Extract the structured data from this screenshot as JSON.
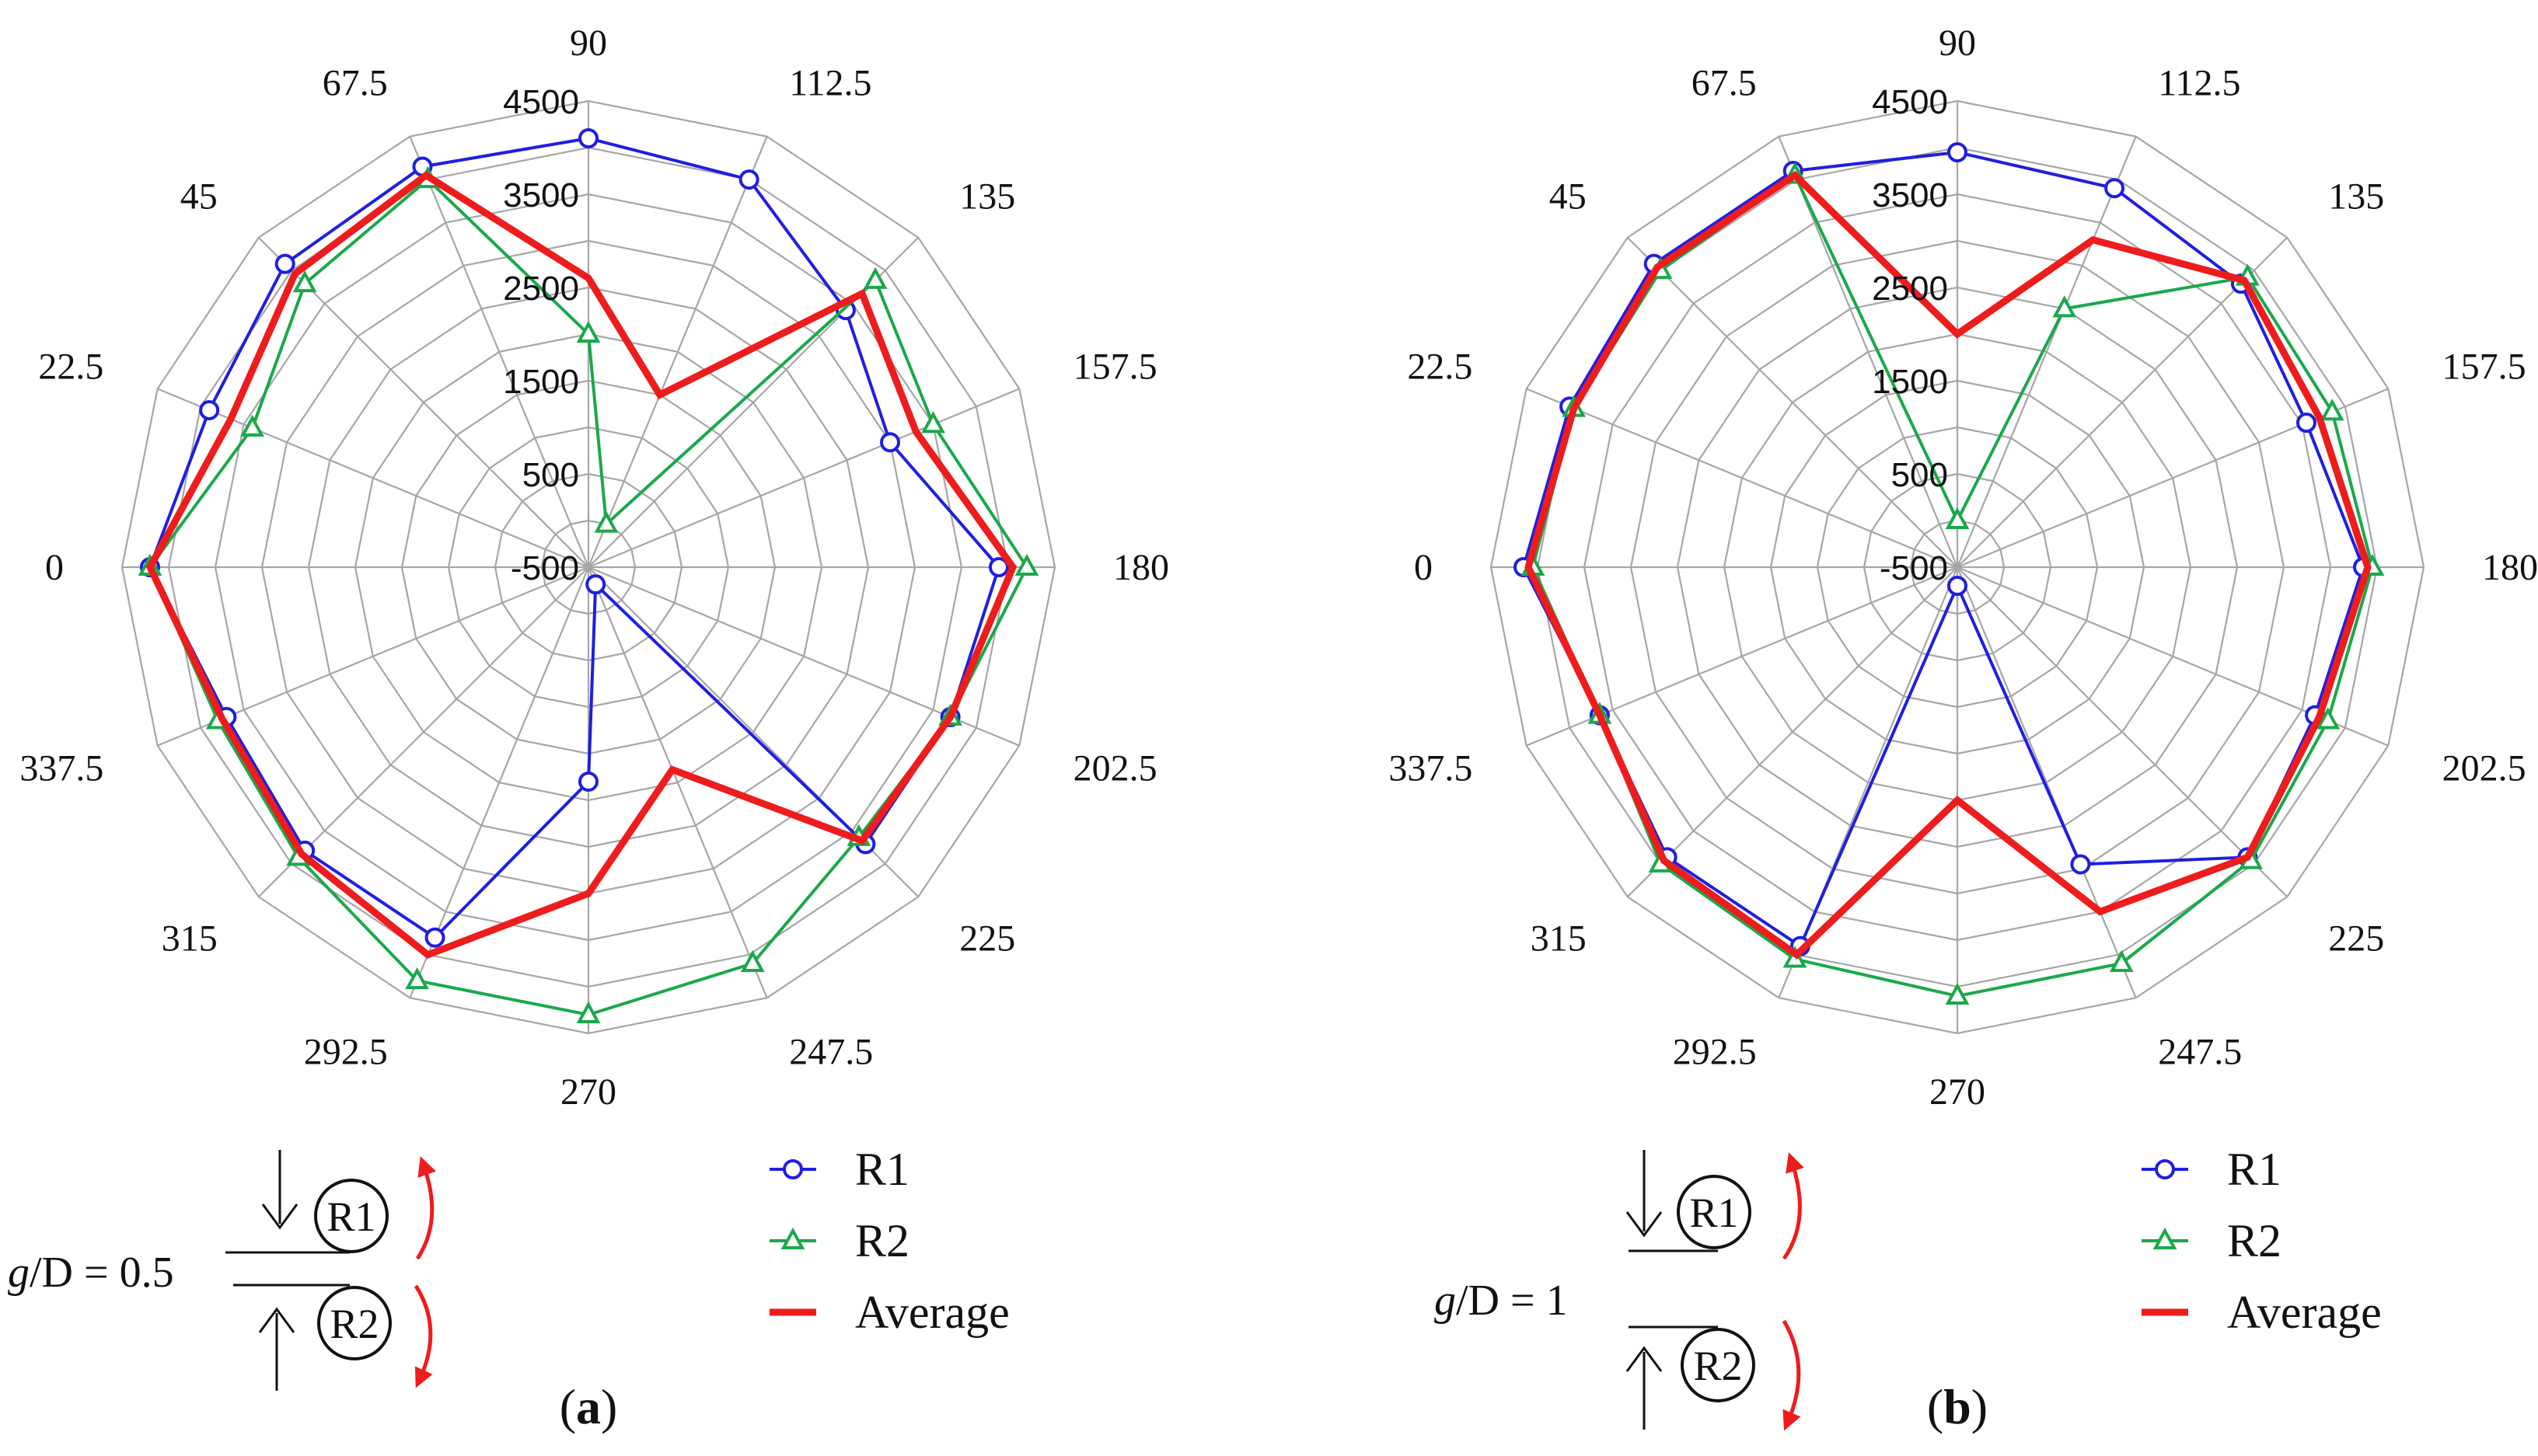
{
  "chart_data": [
    {
      "type": "radar",
      "panel_label": "a",
      "angles": [
        "0",
        "22.5",
        "45",
        "67.5",
        "90",
        "112.5",
        "135",
        "157.5",
        "180",
        "202.5",
        "225",
        "247.5",
        "270",
        "292.5",
        "315",
        "337.5"
      ],
      "radial_ticks": [
        "-500",
        "500",
        "1500",
        "2500",
        "3500",
        "4500"
      ],
      "rlim": [
        -500,
        4500
      ],
      "series": [
        {
          "name": "R1",
          "color": "#1f1fe0",
          "marker": "circle",
          "values": [
            4200,
            3900,
            4100,
            4150,
            4100,
            4000,
            3400,
            3000,
            3900,
            3700,
            3700,
            -300,
            1800,
            3800,
            3800,
            3700
          ]
        },
        {
          "name": "R2",
          "color": "#1aa84a",
          "marker": "triangle",
          "values": [
            4200,
            3400,
            3800,
            4000,
            2000,
            0,
            3850,
            3500,
            4200,
            3700,
            3600,
            4100,
            4300,
            4300,
            3900,
            3800
          ]
        },
        {
          "name": "Average",
          "color": "#ee1c1c",
          "marker": "none",
          "values": [
            4200,
            3650,
            3950,
            4050,
            2600,
            1500,
            3650,
            3300,
            4050,
            3700,
            3650,
            1850,
            3000,
            4000,
            3850,
            3750
          ]
        }
      ],
      "annotation": {
        "ratio_prefix": "g",
        "ratio_mid": "/D",
        "ratio_value": " = 0.5",
        "roller_top": "R1",
        "roller_bottom": "R2"
      }
    },
    {
      "type": "radar",
      "panel_label": "b",
      "angles": [
        "0",
        "22.5",
        "45",
        "67.5",
        "90",
        "112.5",
        "135",
        "157.5",
        "180",
        "202.5",
        "225",
        "247.5",
        "270",
        "292.5",
        "315",
        "337.5"
      ],
      "radial_ticks": [
        "-500",
        "500",
        "1500",
        "2500",
        "3500",
        "4500"
      ],
      "rlim": [
        -500,
        4500
      ],
      "series": [
        {
          "name": "R1",
          "color": "#1f1fe0",
          "marker": "circle",
          "values": [
            4150,
            4000,
            4100,
            4100,
            3950,
            3900,
            3800,
            3550,
            3850,
            3650,
            3900,
            2950,
            -300,
            3900,
            3900,
            3650
          ]
        },
        {
          "name": "R2",
          "color": "#1aa84a",
          "marker": "triangle",
          "values": [
            4050,
            3950,
            4000,
            4050,
            0,
            2500,
            3900,
            3850,
            3950,
            3800,
            3950,
            4100,
            4100,
            4050,
            4000,
            3650
          ]
        },
        {
          "name": "Average",
          "color": "#ee1c1c",
          "marker": "none",
          "values": [
            4100,
            3950,
            4050,
            4050,
            2000,
            3300,
            3850,
            3700,
            3900,
            3700,
            3900,
            3500,
            2000,
            4000,
            3950,
            3650
          ]
        }
      ],
      "annotation": {
        "ratio_prefix": "g",
        "ratio_mid": "/D",
        "ratio_value": " = 1",
        "roller_top": "R1",
        "roller_bottom": "R2"
      }
    }
  ],
  "legend": [
    {
      "name": "R1",
      "color": "#1f1fe0",
      "marker": "circle"
    },
    {
      "name": "R2",
      "color": "#1aa84a",
      "marker": "triangle"
    },
    {
      "name": "Average",
      "color": "#ee1c1c",
      "marker": "none"
    }
  ],
  "colors": {
    "grid": "#a6a6a6",
    "arrow": "#ee1c1c"
  }
}
